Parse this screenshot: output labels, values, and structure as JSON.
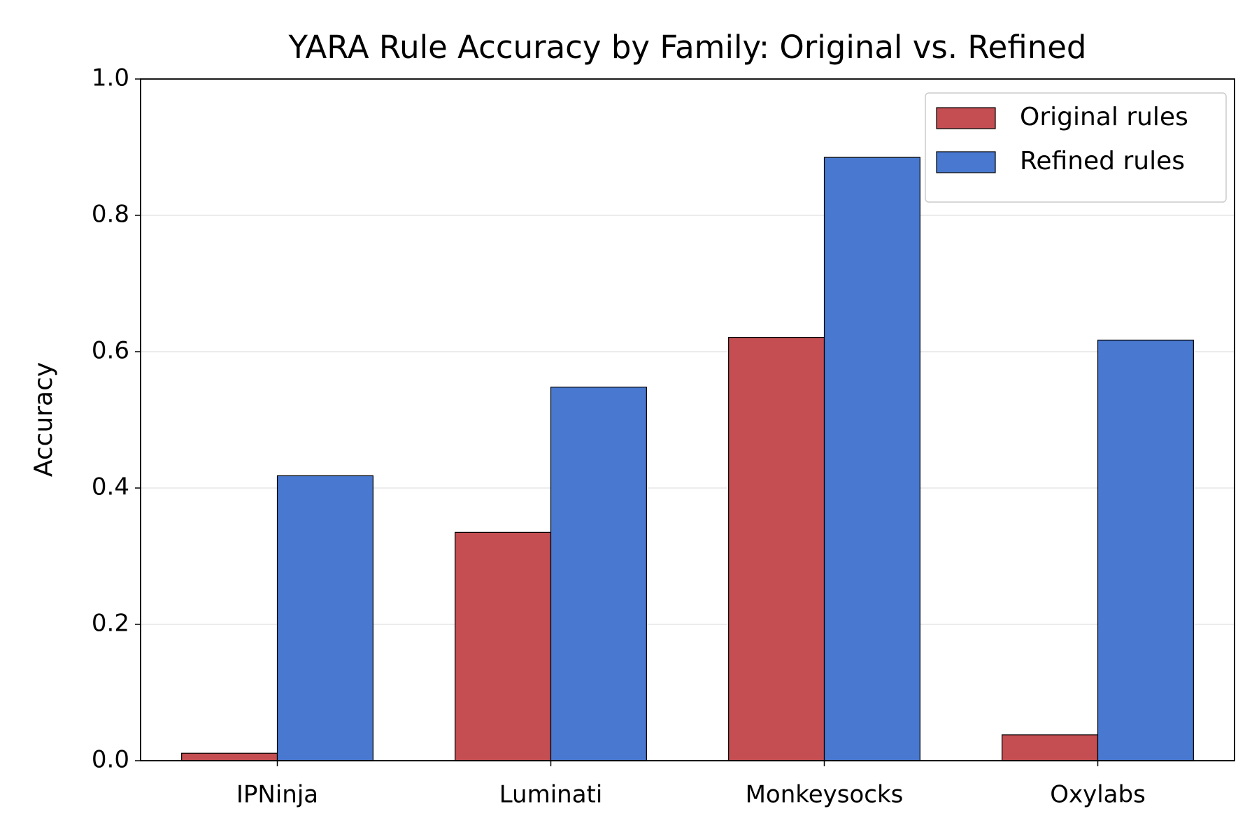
{
  "chart_data": {
    "type": "bar",
    "title": "YARA Rule Accuracy by Family: Original vs. Refined",
    "y_label": "Accuracy",
    "categories": [
      "IPNinja",
      "Luminati",
      "Monkeysocks",
      "Oxylabs"
    ],
    "series": [
      {
        "name": "Original rules",
        "color": "#c44e52",
        "values": [
          0.011,
          0.335,
          0.621,
          0.038
        ]
      },
      {
        "name": "Refined rules",
        "color": "#4878cf",
        "values": [
          0.418,
          0.548,
          0.885,
          0.617
        ]
      }
    ],
    "ylim": [
      0,
      1
    ],
    "yticks": [
      {
        "value": 0,
        "label": "0.0"
      },
      0.2,
      0.4,
      0.6,
      0.8,
      {
        "value": 1,
        "label": "1.0"
      }
    ],
    "grid": true,
    "legend": "upper right"
  }
}
